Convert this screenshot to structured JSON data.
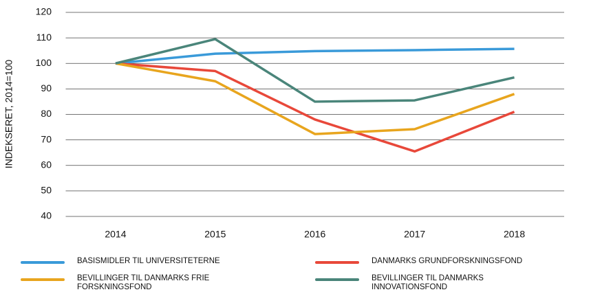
{
  "chart_data": {
    "type": "line",
    "y_label": "INDEKSERET, 2014=100",
    "categories": [
      "2014",
      "2015",
      "2016",
      "2017",
      "2018"
    ],
    "series": [
      {
        "name": "BASISMIDLER TIL UNIVERSITETERNE",
        "color": "#3a9ad9",
        "values": [
          100,
          103.8,
          104.8,
          105.2,
          105.7
        ]
      },
      {
        "name": "DANMARKS GRUNDFORSKNINGSFOND",
        "color": "#e8483a",
        "values": [
          100,
          97,
          78,
          65.5,
          81
        ]
      },
      {
        "name": "BEVILLINGER TIL DANMARKS FRIE FORSKNINGSFOND",
        "color": "#e8a51e",
        "values": [
          100,
          93,
          72.3,
          74.2,
          88
        ]
      },
      {
        "name": "BEVILLINGER TIL DANMARKS INNOVATIONSFOND",
        "color": "#4a857a",
        "values": [
          100,
          109.5,
          85,
          85.5,
          94.5
        ]
      }
    ],
    "ylim": [
      40,
      120
    ],
    "yticks": [
      40,
      50,
      60,
      70,
      80,
      90,
      100,
      110,
      120
    ],
    "grid": true
  }
}
